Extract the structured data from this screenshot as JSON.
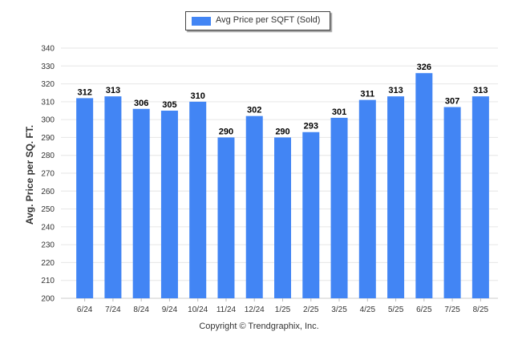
{
  "legend": {
    "label": "Avg Price per SQFT (Sold)"
  },
  "footer": {
    "copyright": "Copyright © Trendgraphix, Inc."
  },
  "colors": {
    "bar": "#4285f4",
    "grid": "#e6e6e6",
    "axis": "#333333"
  },
  "chart_data": {
    "type": "bar",
    "title": "",
    "xlabel": "",
    "ylabel": "Avg. Price per SQ. FT.",
    "ylim": [
      200,
      340
    ],
    "yticks": [
      200,
      210,
      220,
      230,
      240,
      250,
      260,
      270,
      280,
      290,
      300,
      310,
      320,
      330,
      340
    ],
    "grid": true,
    "legend_position": "top-center",
    "categories": [
      "6/24",
      "7/24",
      "8/24",
      "9/24",
      "10/24",
      "11/24",
      "12/24",
      "1/25",
      "2/25",
      "3/25",
      "4/25",
      "5/25",
      "6/25",
      "7/25",
      "8/25"
    ],
    "series": [
      {
        "name": "Avg Price per SQFT (Sold)",
        "values": [
          312,
          313,
          306,
          305,
          310,
          290,
          302,
          290,
          293,
          301,
          311,
          313,
          326,
          307,
          313
        ]
      }
    ]
  }
}
